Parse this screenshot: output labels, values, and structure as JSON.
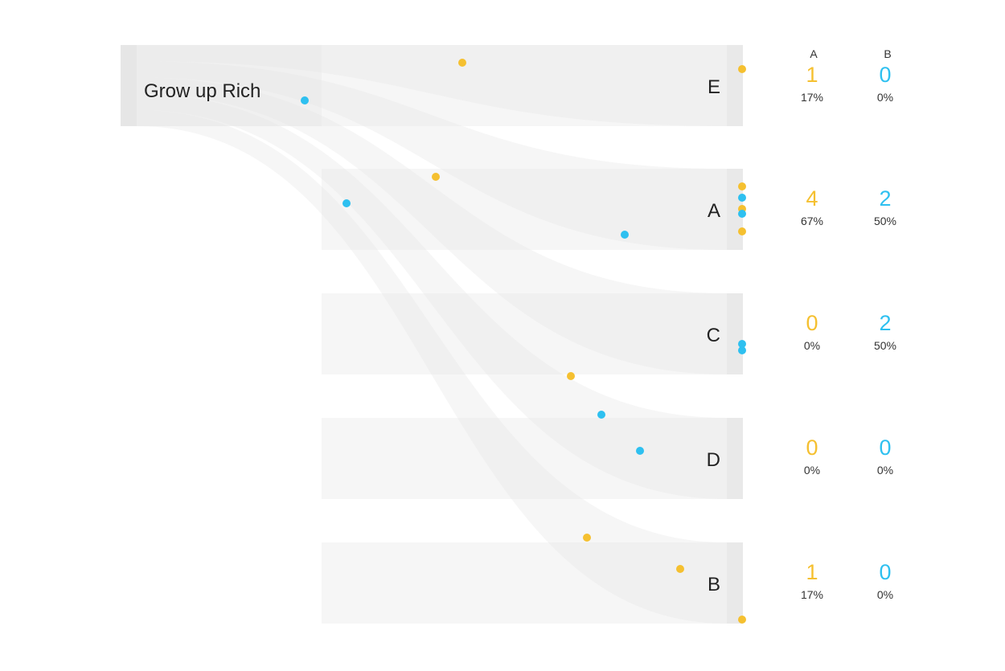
{
  "source": {
    "label": "Grow up Rich"
  },
  "columns": [
    {
      "key": "a",
      "label": "A",
      "color": "#F5C030"
    },
    {
      "key": "b",
      "label": "B",
      "color": "#2EC0F0"
    }
  ],
  "colors": {
    "flow": "#e6e6e6",
    "node_bar": "#e9e9e9",
    "source_bar": "#e6e6e6",
    "band": "#f6f6f6"
  },
  "targets": [
    {
      "label": "E",
      "a": {
        "count": "1",
        "pct": "17%"
      },
      "b": {
        "count": "0",
        "pct": "0%"
      }
    },
    {
      "label": "A",
      "a": {
        "count": "4",
        "pct": "67%"
      },
      "b": {
        "count": "2",
        "pct": "50%"
      }
    },
    {
      "label": "C",
      "a": {
        "count": "0",
        "pct": "0%"
      },
      "b": {
        "count": "2",
        "pct": "50%"
      }
    },
    {
      "label": "D",
      "a": {
        "count": "0",
        "pct": "0%"
      },
      "b": {
        "count": "0",
        "pct": "0%"
      }
    },
    {
      "label": "B",
      "a": {
        "count": "1",
        "pct": "17%"
      },
      "b": {
        "count": "0",
        "pct": "0%"
      }
    }
  ]
}
